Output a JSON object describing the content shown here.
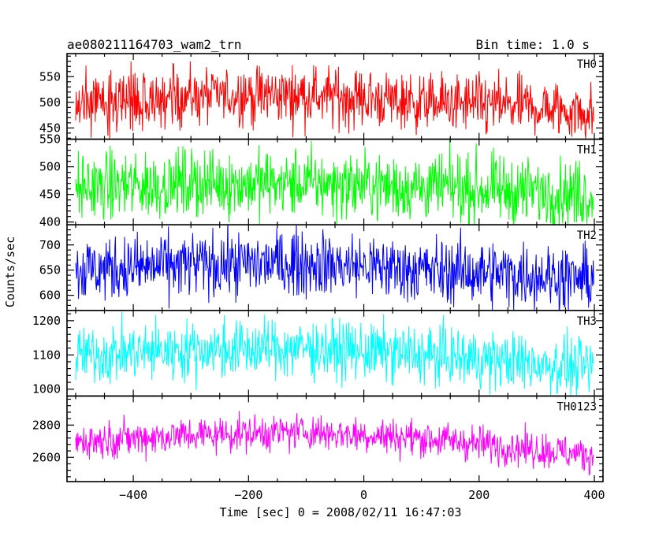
{
  "header": {
    "title": "ae080211164703_wam2_trn",
    "bin_time": "Bin time: 1.0 s"
  },
  "chart_data": {
    "type": "line",
    "xlabel": "Time [sec] 0 = 2008/02/11 16:47:03",
    "ylabel": "Counts/sec",
    "xlim": [
      -515,
      415
    ],
    "x_range": [
      -500,
      399
    ],
    "x_step": 1,
    "x_ticks": [
      -400,
      -200,
      0,
      200,
      400
    ],
    "grid": false,
    "panels": [
      {
        "name": "TH0",
        "color": "#ff0000",
        "ylim": [
          428,
          595
        ],
        "y_ticks": [
          450,
          500,
          550
        ],
        "trend_x": [
          -500,
          -300,
          -100,
          100,
          300,
          400
        ],
        "trend_y": [
          500,
          512,
          515,
          500,
          490,
          478
        ],
        "noise": 28
      },
      {
        "name": "TH1",
        "color": "#00ff00",
        "ylim": [
          395,
          550
        ],
        "y_ticks": [
          400,
          450,
          500,
          550
        ],
        "trend_x": [
          -500,
          -300,
          -100,
          100,
          300,
          400
        ],
        "trend_y": [
          462,
          470,
          470,
          463,
          455,
          450
        ],
        "noise": 30
      },
      {
        "name": "TH2",
        "color": "#0000ff",
        "ylim": [
          570,
          740
        ],
        "y_ticks": [
          600,
          650,
          700
        ],
        "trend_x": [
          -500,
          -300,
          -100,
          100,
          300,
          400
        ],
        "trend_y": [
          650,
          660,
          665,
          650,
          640,
          630
        ],
        "noise": 32
      },
      {
        "name": "TH3",
        "color": "#00ffff",
        "ylim": [
          980,
          1230
        ],
        "y_ticks": [
          1000,
          1100,
          1200
        ],
        "trend_x": [
          -500,
          -300,
          -100,
          100,
          300,
          400
        ],
        "trend_y": [
          1100,
          1115,
          1120,
          1100,
          1075,
          1060
        ],
        "noise": 42
      },
      {
        "name": "TH0123",
        "color": "#ff00ff",
        "ylim": [
          2450,
          2980
        ],
        "y_ticks": [
          2600,
          2800
        ],
        "trend_x": [
          -500,
          -300,
          -100,
          100,
          300,
          400
        ],
        "trend_y": [
          2700,
          2740,
          2760,
          2720,
          2650,
          2610
        ],
        "noise": 55
      }
    ]
  }
}
